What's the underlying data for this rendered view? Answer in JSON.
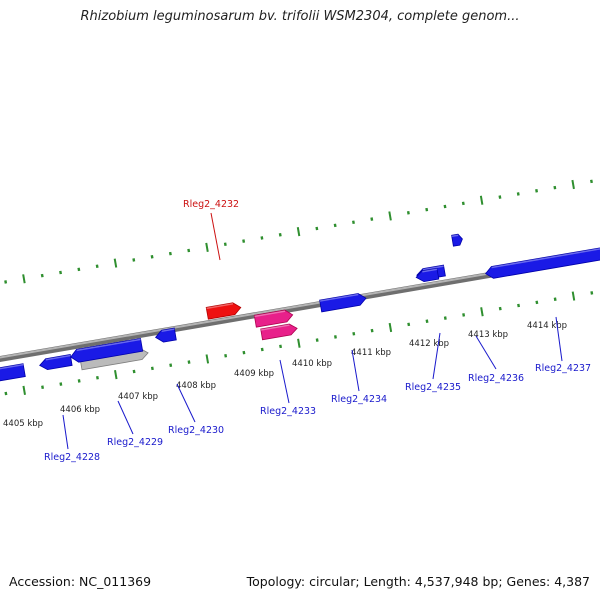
{
  "header": {
    "title": "Rhizobium leguminosarum bv. trifolii WSM2304, complete genom..."
  },
  "footer": {
    "accession": "Accession: NC_011369",
    "summary": "Topology: circular; Length: 4,537,948 bp; Genes: 4,387"
  },
  "colors": {
    "backbone": "#8a8a8a",
    "tick": "#2f8f2f",
    "gene_blue": "#1a1ae6",
    "gene_red": "#ee1111",
    "gene_pink": "#e8208a",
    "gene_grey": "#bbbbbb",
    "label_blue": "#1a1acc",
    "label_red": "#cc1111"
  },
  "axis_labels": [
    "4405 kbp",
    "4406 kbp",
    "4407 kbp",
    "4408 kbp",
    "4409 kbp",
    "4410 kbp",
    "4411 kbp",
    "4412 kbp",
    "4413 kbp",
    "4414 kbp"
  ],
  "genes": [
    {
      "label": "Rleg2_4228",
      "color": "gene_blue"
    },
    {
      "label": "Rleg2_4229",
      "color": "gene_blue"
    },
    {
      "label": "Rleg2_4230",
      "color": "gene_blue"
    },
    {
      "label": "Rleg2_4232",
      "color": "gene_red"
    },
    {
      "label": "Rleg2_4233",
      "color": "gene_pink"
    },
    {
      "label": "Rleg2_4234",
      "color": "gene_blue"
    },
    {
      "label": "Rleg2_4235",
      "color": "gene_blue"
    },
    {
      "label": "Rleg2_4236",
      "color": "gene_blue"
    },
    {
      "label": "Rleg2_4237",
      "color": "gene_blue"
    }
  ]
}
